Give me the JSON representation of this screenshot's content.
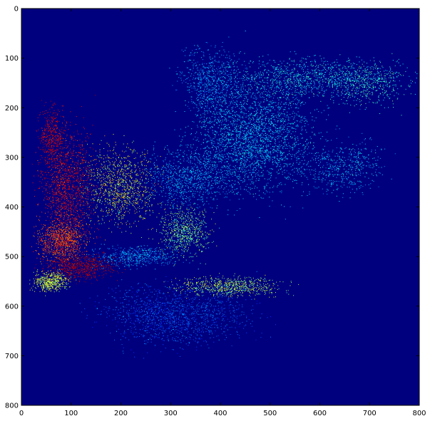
{
  "figure": {
    "background": "#00007f",
    "colormap": "jet",
    "axes": {
      "xlim": [
        0,
        800
      ],
      "ylim": [
        0,
        800
      ],
      "y_inverted": true,
      "x_ticks": [
        {
          "value": 0,
          "label": "0"
        },
        {
          "value": 100,
          "label": "100"
        },
        {
          "value": 200,
          "label": "200"
        },
        {
          "value": 300,
          "label": "300"
        },
        {
          "value": 400,
          "label": "400"
        },
        {
          "value": 500,
          "label": "500"
        },
        {
          "value": 600,
          "label": "600"
        },
        {
          "value": 700,
          "label": "700"
        },
        {
          "value": 800,
          "label": "800"
        }
      ],
      "y_ticks": [
        {
          "value": 0,
          "label": "0"
        },
        {
          "value": 100,
          "label": "100"
        },
        {
          "value": 200,
          "label": "200"
        },
        {
          "value": 300,
          "label": "300"
        },
        {
          "value": 400,
          "label": "400"
        },
        {
          "value": 500,
          "label": "500"
        },
        {
          "value": 600,
          "label": "600"
        },
        {
          "value": 700,
          "label": "700"
        },
        {
          "value": 800,
          "label": "800"
        }
      ]
    }
  }
}
